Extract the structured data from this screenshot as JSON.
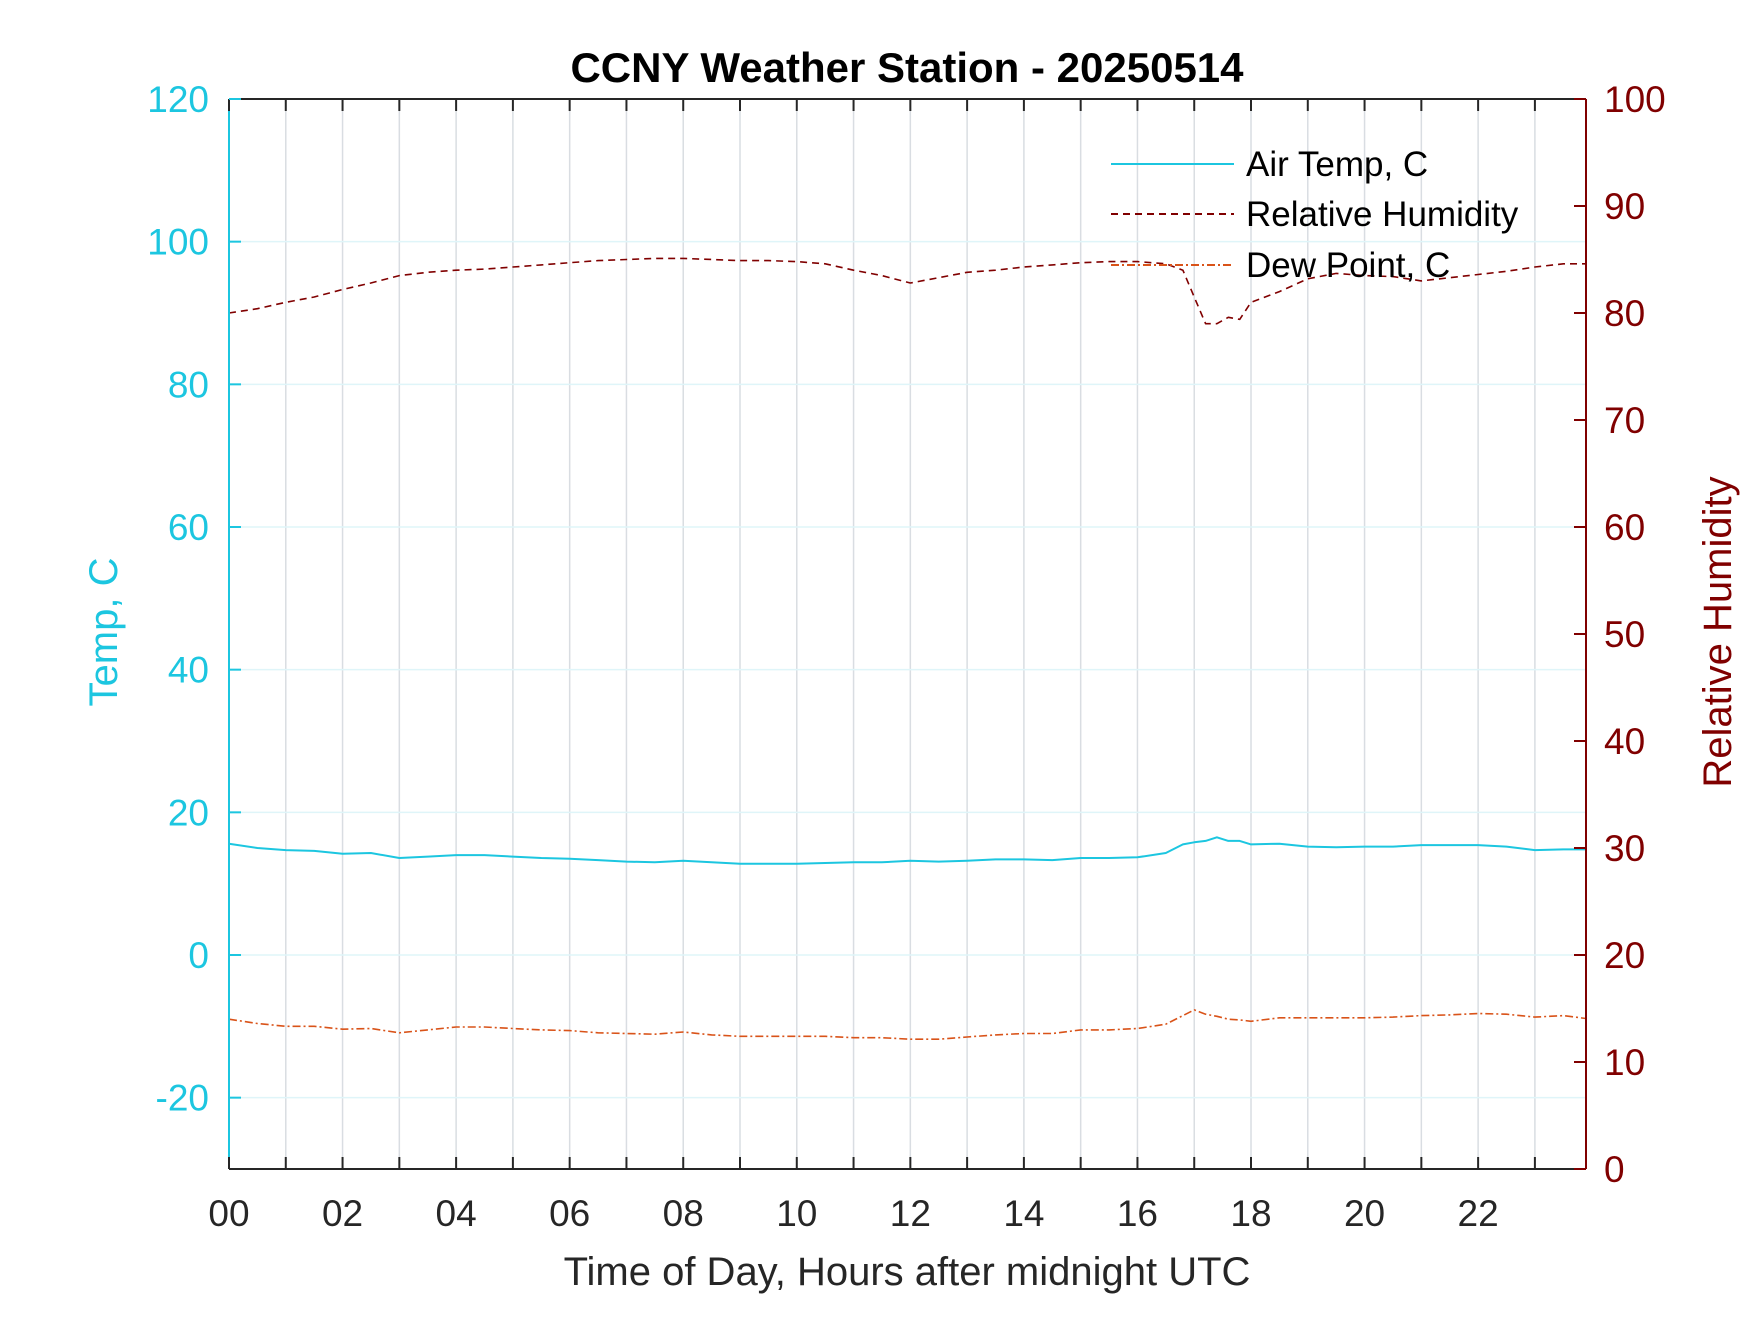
{
  "chart_data": {
    "type": "line",
    "title": "CCNY Weather Station - 20250514",
    "xlabel": "Time of Day, Hours after midnight UTC",
    "ylabel_left": "Temp, C",
    "ylabel_right": "Relative Humidity",
    "xlim": [
      0,
      23.9
    ],
    "ylim_left": [
      -30,
      120
    ],
    "ylim_right": [
      0,
      100
    ],
    "x_ticks": [
      "00",
      "02",
      "04",
      "06",
      "08",
      "10",
      "12",
      "14",
      "16",
      "18",
      "20",
      "22"
    ],
    "y_left_ticks": [
      "-20",
      "0",
      "20",
      "40",
      "60",
      "80",
      "100",
      "120"
    ],
    "y_right_ticks": [
      "0",
      "10",
      "20",
      "30",
      "40",
      "50",
      "60",
      "70",
      "80",
      "90",
      "100"
    ],
    "grid": "on",
    "legend_position": "top-right",
    "colors": {
      "air_temp": "#1cc6e0",
      "relative_humidity": "#800000",
      "dew_point": "#d95319",
      "left_axis": "#1cc6e0",
      "right_axis": "#800000"
    },
    "series": [
      {
        "name": "Air Temp, C",
        "axis": "left",
        "style": "solid",
        "x": [
          0,
          0.5,
          1,
          1.5,
          2,
          2.5,
          3,
          3.5,
          4,
          4.5,
          5,
          5.5,
          6,
          6.5,
          7,
          7.5,
          8,
          8.5,
          9,
          9.5,
          10,
          10.5,
          11,
          11.5,
          12,
          12.5,
          13,
          13.5,
          14,
          14.5,
          15,
          15.5,
          16,
          16.5,
          16.8,
          17,
          17.2,
          17.4,
          17.6,
          17.8,
          18,
          18.5,
          19,
          19.5,
          20,
          20.5,
          21,
          21.5,
          22,
          22.5,
          23,
          23.5,
          23.9
        ],
        "values": [
          15.6,
          15.0,
          14.7,
          14.6,
          14.2,
          14.3,
          13.6,
          13.8,
          14.0,
          14.0,
          13.8,
          13.6,
          13.5,
          13.3,
          13.1,
          13.0,
          13.2,
          13.0,
          12.8,
          12.8,
          12.8,
          12.9,
          13.0,
          13.0,
          13.2,
          13.1,
          13.2,
          13.4,
          13.4,
          13.3,
          13.6,
          13.6,
          13.7,
          14.3,
          15.5,
          15.8,
          16.0,
          16.5,
          16.0,
          16.0,
          15.5,
          15.6,
          15.2,
          15.1,
          15.2,
          15.2,
          15.4,
          15.4,
          15.4,
          15.2,
          14.7,
          14.8,
          14.8
        ]
      },
      {
        "name": "Relative Humidity",
        "axis": "right",
        "style": "dashed",
        "x": [
          0,
          0.5,
          1,
          1.5,
          2,
          2.5,
          3,
          3.5,
          4,
          4.5,
          5,
          5.5,
          6,
          6.5,
          7,
          7.5,
          8,
          8.5,
          9,
          9.5,
          10,
          10.5,
          11,
          11.5,
          12,
          12.5,
          13,
          13.5,
          14,
          14.5,
          15,
          15.5,
          16,
          16.5,
          16.8,
          17,
          17.2,
          17.4,
          17.6,
          17.8,
          18,
          18.5,
          19,
          19.5,
          20,
          20.5,
          21,
          21.5,
          22,
          22.5,
          23,
          23.5,
          23.9
        ],
        "values": [
          80.0,
          80.4,
          81.0,
          81.5,
          82.2,
          82.8,
          83.5,
          83.8,
          84.0,
          84.1,
          84.3,
          84.5,
          84.7,
          84.9,
          85.0,
          85.1,
          85.1,
          85.0,
          84.9,
          84.9,
          84.8,
          84.6,
          84.0,
          83.5,
          82.8,
          83.3,
          83.8,
          84.0,
          84.3,
          84.5,
          84.7,
          84.8,
          84.8,
          84.6,
          84.0,
          81.5,
          79.0,
          79.0,
          79.6,
          79.4,
          81.0,
          82.0,
          83.2,
          83.7,
          83.5,
          83.4,
          83.0,
          83.3,
          83.6,
          83.9,
          84.3,
          84.6,
          84.6
        ]
      },
      {
        "name": "Dew Point, C",
        "axis": "left",
        "style": "dash-dot",
        "x": [
          0,
          0.5,
          1,
          1.5,
          2,
          2.5,
          3,
          3.5,
          4,
          4.5,
          5,
          5.5,
          6,
          6.5,
          7,
          7.5,
          8,
          8.5,
          9,
          9.5,
          10,
          10.5,
          11,
          11.5,
          12,
          12.5,
          13,
          13.5,
          14,
          14.5,
          15,
          15.5,
          16,
          16.5,
          16.8,
          17,
          17.2,
          17.4,
          17.6,
          17.8,
          18,
          18.5,
          19,
          19.5,
          20,
          20.5,
          21,
          21.5,
          22,
          22.5,
          23,
          23.5,
          23.9
        ],
        "values": [
          -9.0,
          -9.6,
          -10.0,
          -10.0,
          -10.4,
          -10.3,
          -10.9,
          -10.5,
          -10.1,
          -10.1,
          -10.3,
          -10.5,
          -10.6,
          -10.9,
          -11.0,
          -11.1,
          -10.8,
          -11.2,
          -11.4,
          -11.4,
          -11.4,
          -11.4,
          -11.6,
          -11.6,
          -11.8,
          -11.8,
          -11.5,
          -11.2,
          -11.0,
          -11.0,
          -10.5,
          -10.5,
          -10.3,
          -9.7,
          -8.5,
          -7.7,
          -8.3,
          -8.6,
          -9.0,
          -9.1,
          -9.3,
          -8.8,
          -8.8,
          -8.8,
          -8.8,
          -8.7,
          -8.5,
          -8.4,
          -8.2,
          -8.3,
          -8.7,
          -8.5,
          -8.9
        ]
      }
    ]
  }
}
